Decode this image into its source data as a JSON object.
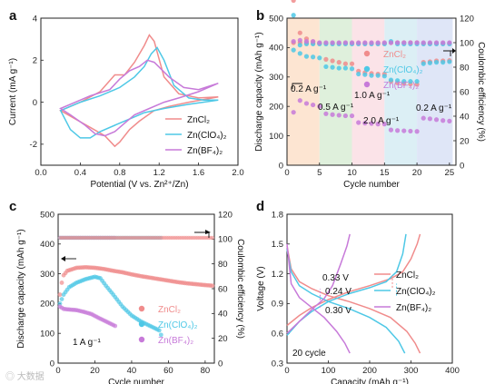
{
  "colors": {
    "zncl2": "#f08c8c",
    "zncl4": "#4ec8e6",
    "znbf4": "#c77ad9",
    "band1": "#fde5d2",
    "band2": "#dff0dc",
    "band3": "#fbe3e8",
    "band4": "#dceff5",
    "band5": "#dfe6f7"
  },
  "legend": {
    "zncl2": "ZnCl₂",
    "zncl4": "Zn(ClO₄)₂",
    "znbf4": "Zn(BF₄)₂"
  },
  "watermark": "◎ 大数据",
  "chart_data": [
    {
      "panel": "a",
      "type": "line",
      "xlabel": "Potential (V vs. Zn²⁺/Zn)",
      "ylabel": "Current (mA g⁻¹)",
      "xlim": [
        0.0,
        2.0
      ],
      "ylim": [
        -3,
        4
      ],
      "xticks": [
        "0.0",
        "0.4",
        "0.8",
        "1.2",
        "1.6",
        "2.0"
      ],
      "yticks": [
        "-2",
        "0",
        "2",
        "4"
      ],
      "series": [
        {
          "name": "ZnCl₂",
          "upper": [
            [
              0.2,
              -0.4
            ],
            [
              0.4,
              0.0
            ],
            [
              0.6,
              0.5
            ],
            [
              0.75,
              1.3
            ],
            [
              0.85,
              1.3
            ],
            [
              0.95,
              1.9
            ],
            [
              1.05,
              2.7
            ],
            [
              1.1,
              3.2
            ],
            [
              1.15,
              2.9
            ],
            [
              1.25,
              1.2
            ],
            [
              1.4,
              0.4
            ],
            [
              1.6,
              0.2
            ],
            [
              1.8,
              0.25
            ]
          ],
          "lower": [
            [
              1.8,
              0.25
            ],
            [
              1.5,
              0.0
            ],
            [
              1.3,
              -0.2
            ],
            [
              1.15,
              -0.4
            ],
            [
              1.0,
              -0.9
            ],
            [
              0.9,
              -1.3
            ],
            [
              0.8,
              -1.9
            ],
            [
              0.75,
              -2.1
            ],
            [
              0.65,
              -1.6
            ],
            [
              0.5,
              -1.2
            ],
            [
              0.35,
              -0.8
            ],
            [
              0.2,
              -0.4
            ]
          ]
        },
        {
          "name": "Zn(ClO₄)₂",
          "upper": [
            [
              0.2,
              -0.4
            ],
            [
              0.4,
              0.0
            ],
            [
              0.6,
              0.3
            ],
            [
              0.8,
              0.7
            ],
            [
              0.95,
              1.2
            ],
            [
              1.05,
              1.7
            ],
            [
              1.12,
              2.3
            ],
            [
              1.18,
              2.6
            ],
            [
              1.25,
              2.0
            ],
            [
              1.35,
              0.8
            ],
            [
              1.5,
              0.2
            ],
            [
              1.65,
              0.1
            ],
            [
              1.8,
              0.1
            ]
          ],
          "lower": [
            [
              1.8,
              0.1
            ],
            [
              1.5,
              -0.1
            ],
            [
              1.25,
              -0.3
            ],
            [
              1.05,
              -0.5
            ],
            [
              0.9,
              -0.8
            ],
            [
              0.75,
              -1.1
            ],
            [
              0.6,
              -1.4
            ],
            [
              0.5,
              -1.7
            ],
            [
              0.4,
              -1.7
            ],
            [
              0.3,
              -1.3
            ],
            [
              0.2,
              -0.4
            ]
          ]
        },
        {
          "name": "Zn(BF₄)₂",
          "upper": [
            [
              0.2,
              -0.3
            ],
            [
              0.35,
              0.0
            ],
            [
              0.5,
              0.3
            ],
            [
              0.7,
              0.6
            ],
            [
              0.8,
              1.1
            ],
            [
              0.9,
              1.5
            ],
            [
              1.0,
              1.7
            ],
            [
              1.08,
              2.0
            ],
            [
              1.15,
              1.9
            ],
            [
              1.3,
              1.2
            ],
            [
              1.45,
              0.7
            ],
            [
              1.6,
              0.6
            ],
            [
              1.8,
              0.9
            ]
          ],
          "lower": [
            [
              1.8,
              0.9
            ],
            [
              1.6,
              0.5
            ],
            [
              1.4,
              0.2
            ],
            [
              1.25,
              0.0
            ],
            [
              1.1,
              -0.3
            ],
            [
              0.95,
              -0.6
            ],
            [
              0.85,
              -1.0
            ],
            [
              0.75,
              -1.4
            ],
            [
              0.65,
              -1.6
            ],
            [
              0.55,
              -1.5
            ],
            [
              0.45,
              -1.1
            ],
            [
              0.3,
              -0.6
            ],
            [
              0.2,
              -0.3
            ]
          ]
        }
      ]
    },
    {
      "panel": "b",
      "type": "scatter",
      "xlabel": "Cycle number",
      "ylabel": "Discharge capacity (mAh g⁻¹)",
      "y2label": "Coulombic efficiency (%)",
      "xlim": [
        0,
        26
      ],
      "ylim": [
        0,
        500
      ],
      "y2lim": [
        0,
        120
      ],
      "xticks": [
        "0",
        "5",
        "10",
        "15",
        "20",
        "25"
      ],
      "yticks": [
        "0",
        "100",
        "200",
        "300",
        "400",
        "500"
      ],
      "y2ticks": [
        "0",
        "20",
        "40",
        "60",
        "80",
        "100",
        "120"
      ],
      "rates": [
        {
          "label": "0.2 A g⁻¹",
          "x0": 0,
          "x1": 5
        },
        {
          "label": "0.5 A g⁻¹",
          "x0": 5,
          "x1": 10
        },
        {
          "label": "1.0 A g⁻¹",
          "x0": 10,
          "x1": 15
        },
        {
          "label": "2.0 A g⁻¹",
          "x0": 15,
          "x1": 20
        },
        {
          "label": "0.2 A g⁻¹",
          "x0": 20,
          "x1": 25.5
        }
      ],
      "series": [
        {
          "name": "ZnCl₂",
          "capacity": [
            560,
            450,
            430,
            420,
            415,
            360,
            355,
            350,
            345,
            345,
            320,
            315,
            312,
            310,
            310,
            285,
            280,
            278,
            276,
            275,
            350,
            352,
            355,
            355,
            356
          ],
          "ce": [
            100,
            100,
            100,
            99.5,
            99.5,
            99.5,
            99.5,
            99.5,
            99.5,
            99.5,
            99.5,
            99.5,
            99.5,
            99.5,
            99.5,
            100,
            100,
            100,
            100,
            100,
            99.5,
            99.5,
            99.5,
            99.5,
            99.5
          ]
        },
        {
          "name": "Zn(ClO₄)₂",
          "capacity": [
            510,
            380,
            370,
            368,
            365,
            335,
            333,
            330,
            330,
            328,
            310,
            308,
            305,
            305,
            303,
            290,
            288,
            285,
            285,
            285,
            345,
            348,
            350,
            350,
            352
          ],
          "ce": [
            94,
            98,
            99,
            99,
            99,
            99,
            99,
            99,
            99,
            99,
            99,
            99,
            99,
            99,
            99,
            101,
            99,
            99,
            99,
            99,
            99,
            99,
            99,
            99,
            99
          ]
        },
        {
          "name": "Zn(BF₄)₂",
          "capacity": [
            180,
            220,
            210,
            205,
            200,
            175,
            172,
            170,
            168,
            168,
            145,
            143,
            142,
            140,
            140,
            120,
            118,
            117,
            116,
            115,
            160,
            158,
            155,
            152,
            150
          ],
          "ce": [
            101,
            102,
            101,
            101,
            100,
            100,
            100,
            100,
            100,
            100,
            100,
            100,
            100,
            100,
            100,
            100,
            100,
            100,
            100,
            100,
            100,
            100,
            100,
            100,
            100
          ]
        }
      ]
    },
    {
      "panel": "c",
      "type": "scatter",
      "xlabel": "Cycle number",
      "ylabel": "Discharge capacity (mAh g⁻¹)",
      "y2label": "Coulombic efficiency (%)",
      "annotation": "1 A g⁻¹",
      "xlim": [
        0,
        85
      ],
      "ylim": [
        0,
        500
      ],
      "y2lim": [
        0,
        120
      ],
      "xticks": [
        "0",
        "20",
        "40",
        "60",
        "80"
      ],
      "yticks": [
        "0",
        "100",
        "200",
        "300",
        "400",
        "500"
      ],
      "y2ticks": [
        "0",
        "20",
        "40",
        "60",
        "80",
        "100",
        "120"
      ],
      "series": [
        {
          "name": "ZnCl₂",
          "points": [
            [
              1,
              230
            ],
            [
              2,
              270
            ],
            [
              3,
              295
            ],
            [
              5,
              310
            ],
            [
              10,
              320
            ],
            [
              15,
              322
            ],
            [
              20,
              320
            ],
            [
              25,
              316
            ],
            [
              30,
              310
            ],
            [
              35,
              305
            ],
            [
              40,
              298
            ],
            [
              45,
              292
            ],
            [
              50,
              287
            ],
            [
              55,
              282
            ],
            [
              60,
              277
            ],
            [
              65,
              272
            ],
            [
              70,
              268
            ],
            [
              75,
              265
            ],
            [
              80,
              262
            ],
            [
              84,
              260
            ]
          ],
          "ce": 101
        },
        {
          "name": "Zn(ClO₄)₂",
          "points": [
            [
              1,
              200
            ],
            [
              3,
              230
            ],
            [
              6,
              255
            ],
            [
              10,
              270
            ],
            [
              15,
              282
            ],
            [
              20,
              290
            ],
            [
              23,
              285
            ],
            [
              26,
              260
            ],
            [
              30,
              230
            ],
            [
              35,
              190
            ],
            [
              40,
              160
            ],
            [
              45,
              140
            ],
            [
              50,
              125
            ],
            [
              55,
              110
            ],
            [
              56,
              95
            ]
          ],
          "ce": 101,
          "ce_x1": 56
        },
        {
          "name": "Zn(BF₄)₂",
          "points": [
            [
              1,
              190
            ],
            [
              3,
              182
            ],
            [
              6,
              180
            ],
            [
              10,
              178
            ],
            [
              14,
              172
            ],
            [
              18,
              165
            ],
            [
              22,
              152
            ],
            [
              26,
              140
            ],
            [
              30,
              128
            ],
            [
              31,
              125
            ]
          ],
          "ce": 101,
          "ce_x1": 31
        }
      ]
    },
    {
      "panel": "d",
      "type": "line",
      "xlabel": "Capacity (mAh g⁻¹)",
      "ylabel": "Voltage (V)",
      "annotation": "20 cycle",
      "xlim": [
        0,
        400
      ],
      "ylim": [
        0.3,
        1.8
      ],
      "xticks": [
        "0",
        "100",
        "200",
        "300",
        "400"
      ],
      "yticks": [
        "0.3",
        "0.6",
        "0.9",
        "1.2",
        "1.5",
        "1.8"
      ],
      "gaps": [
        {
          "label": "0.33 V",
          "x": 80
        },
        {
          "label": "0.24 V",
          "x": 255
        },
        {
          "label": "0.30 V",
          "x": 265
        }
      ],
      "series": [
        {
          "name": "ZnCl₂",
          "charge": [
            [
              0,
              0.68
            ],
            [
              30,
              0.78
            ],
            [
              60,
              0.86
            ],
            [
              100,
              0.94
            ],
            [
              150,
              1.02
            ],
            [
              200,
              1.08
            ],
            [
              250,
              1.15
            ],
            [
              280,
              1.22
            ],
            [
              300,
              1.35
            ],
            [
              315,
              1.5
            ],
            [
              322,
              1.6
            ]
          ],
          "discharge": [
            [
              0,
              1.48
            ],
            [
              10,
              1.25
            ],
            [
              30,
              1.12
            ],
            [
              60,
              1.05
            ],
            [
              100,
              0.98
            ],
            [
              150,
              0.92
            ],
            [
              200,
              0.85
            ],
            [
              250,
              0.76
            ],
            [
              290,
              0.62
            ],
            [
              310,
              0.5
            ],
            [
              322,
              0.4
            ]
          ]
        },
        {
          "name": "Zn(ClO₄)₂",
          "charge": [
            [
              0,
              0.58
            ],
            [
              30,
              0.72
            ],
            [
              60,
              0.82
            ],
            [
              100,
              0.92
            ],
            [
              150,
              1.0
            ],
            [
              200,
              1.06
            ],
            [
              240,
              1.12
            ],
            [
              265,
              1.22
            ],
            [
              280,
              1.4
            ],
            [
              288,
              1.6
            ]
          ],
          "discharge": [
            [
              0,
              1.45
            ],
            [
              10,
              1.22
            ],
            [
              30,
              1.08
            ],
            [
              60,
              1.0
            ],
            [
              100,
              0.92
            ],
            [
              150,
              0.85
            ],
            [
              200,
              0.76
            ],
            [
              240,
              0.66
            ],
            [
              270,
              0.52
            ],
            [
              285,
              0.4
            ]
          ]
        },
        {
          "name": "Zn(BF₄)₂",
          "charge": [
            [
              0,
              0.6
            ],
            [
              30,
              0.72
            ],
            [
              60,
              0.84
            ],
            [
              90,
              0.95
            ],
            [
              110,
              1.08
            ],
            [
              130,
              1.3
            ],
            [
              145,
              1.48
            ],
            [
              152,
              1.6
            ]
          ],
          "discharge": [
            [
              0,
              1.5
            ],
            [
              10,
              1.1
            ],
            [
              30,
              0.96
            ],
            [
              60,
              0.86
            ],
            [
              90,
              0.76
            ],
            [
              120,
              0.62
            ],
            [
              140,
              0.5
            ],
            [
              152,
              0.4
            ]
          ]
        }
      ]
    }
  ]
}
